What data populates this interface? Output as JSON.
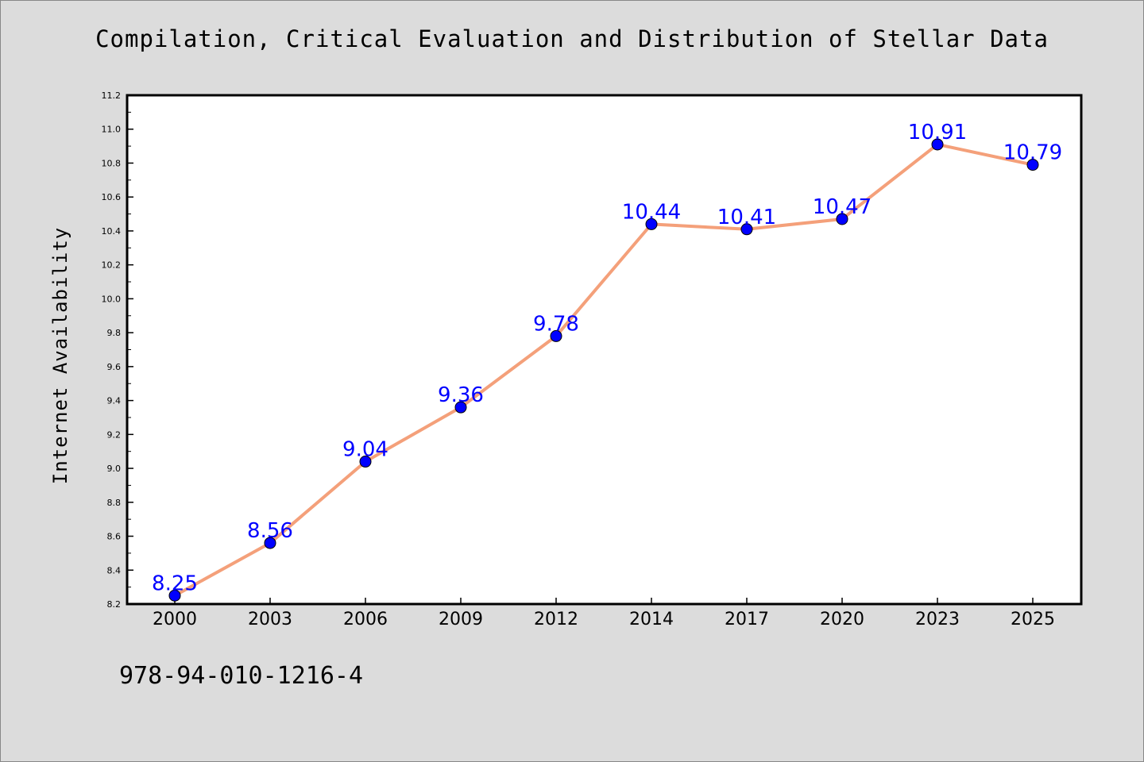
{
  "chart_data": {
    "type": "line",
    "title": "Compilation, Critical Evaluation and Distribution of Stellar Data",
    "ylabel": "Internet Availability",
    "xlabel": "",
    "categories": [
      "2000",
      "2003",
      "2006",
      "2009",
      "2012",
      "2014",
      "2017",
      "2020",
      "2023",
      "2025"
    ],
    "values": [
      8.25,
      8.56,
      9.04,
      9.36,
      9.78,
      10.44,
      10.41,
      10.47,
      10.91,
      10.79
    ],
    "data_labels": [
      "8.25",
      "8.56",
      "9.04",
      "9.36",
      "9.78",
      "10.44",
      "10.41",
      "10.47",
      "10.91",
      "10.79"
    ],
    "ylim": [
      8.2,
      11.2
    ],
    "yticks": [
      "8.2",
      "8.4",
      "8.6",
      "8.8",
      "9.0",
      "9.2",
      "9.4",
      "9.6",
      "9.8",
      "10.0",
      "10.2",
      "10.4",
      "10.6",
      "10.8",
      "11.0",
      "11.2"
    ],
    "grid": false,
    "legend": "none",
    "colors": {
      "line": "#f4a07a",
      "marker": "#0000ff",
      "data_label": "#0000ff",
      "background": "#dcdcdc",
      "plot_background": "#ffffff"
    }
  },
  "footer": {
    "code": "978-94-010-1216-4"
  }
}
